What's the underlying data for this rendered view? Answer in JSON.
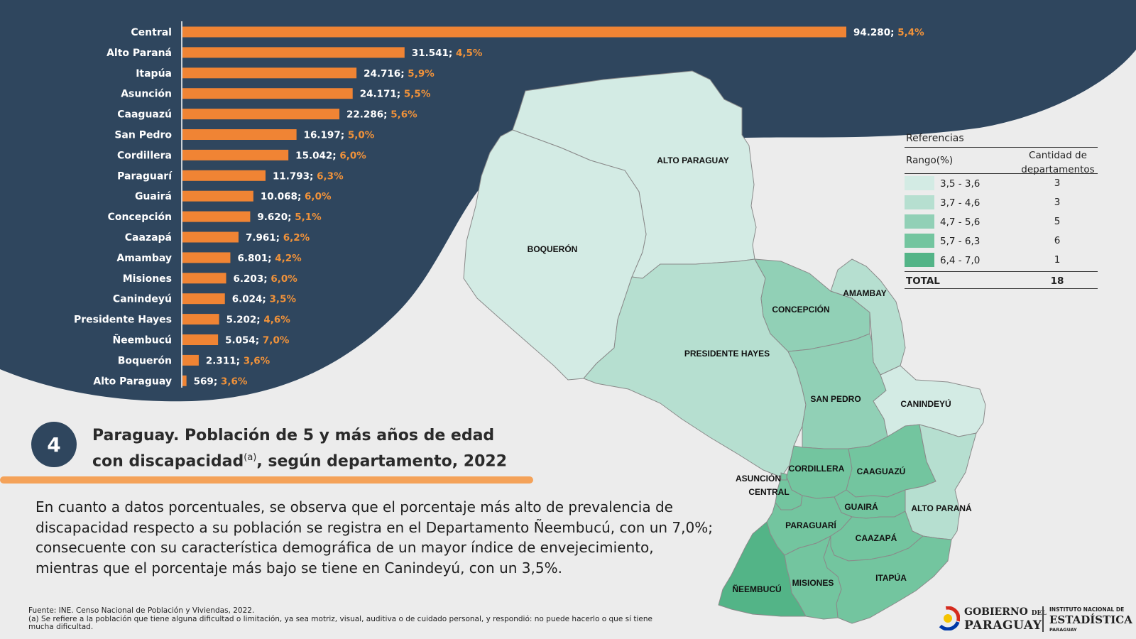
{
  "colors": {
    "navy": "#2f465e",
    "bar": "#f08434",
    "pct_text": "#f0923a",
    "accent_rule": "#f4a259",
    "background": "#ececec",
    "range_1": "#d3ebe4",
    "range_2": "#b6dfd0",
    "range_3": "#91d0b6",
    "range_4": "#73c59f",
    "range_5": "#53b487"
  },
  "chart_data": {
    "type": "bar",
    "orientation": "horizontal",
    "categories": [
      "Central",
      "Alto Paraná",
      "Itapúa",
      "Asunción",
      "Caaguazú",
      "San Pedro",
      "Cordillera",
      "Paraguarí",
      "Guairá",
      "Concepción",
      "Caazapá",
      "Amambay",
      "Misiones",
      "Canindeyú",
      "Presidente Hayes",
      "Ñeembucú",
      "Boquerón",
      "Alto Paraguay"
    ],
    "values": [
      94280,
      31541,
      24716,
      24171,
      22286,
      16197,
      15042,
      11793,
      10068,
      9620,
      7961,
      6801,
      6203,
      6024,
      5202,
      5054,
      2311,
      569
    ],
    "value_labels": [
      "94.280;",
      "31.541;",
      "24.716;",
      "24.171;",
      "22.286;",
      "16.197;",
      "15.042;",
      "11.793;",
      "10.068;",
      "9.620;",
      "7.961;",
      "6.801;",
      "6.203;",
      "6.024;",
      "5.202;",
      "5.054;",
      "2.311;",
      "569;"
    ],
    "percent_labels": [
      "5,4%",
      "4,5%",
      "5,9%",
      "5,5%",
      "5,6%",
      "5,0%",
      "6,0%",
      "6,3%",
      "6,0%",
      "5,1%",
      "6,2%",
      "4,2%",
      "6,0%",
      "3,5%",
      "4,6%",
      "7,0%",
      "3,6%",
      "3,6%"
    ],
    "percents": [
      5.4,
      4.5,
      5.9,
      5.5,
      5.6,
      5.0,
      6.0,
      6.3,
      6.0,
      5.1,
      6.2,
      4.2,
      6.0,
      3.5,
      4.6,
      7.0,
      3.6,
      3.6
    ],
    "xlim": [
      0,
      94280
    ],
    "grid": false
  },
  "map": {
    "labels": {
      "alto_paraguay": "ALTO PARAGUAY",
      "boqueron": "BOQUERÓN",
      "presidente_hayes": "PRESIDENTE  HAYES",
      "concepcion": "CONCEPCIÓN",
      "amambay": "AMAMBAY",
      "san_pedro": "SAN PEDRO",
      "canindeyu": "CANINDEYÚ",
      "cordillera": "CORDILLERA",
      "caaguazu": "CAAGUAZÚ",
      "asuncion": "ASUNCIÓN",
      "central": "CENTRAL",
      "alto_parana": "ALTO PARANÁ",
      "guaira": "GUAIRÁ",
      "paraguari": "PARAGUARÍ",
      "caazapa": "CAAZAPÁ",
      "itapua": "ITAPÚA",
      "misiones": "MISIONES",
      "neembucu": "ÑEEMBUCÚ"
    }
  },
  "legend": {
    "title": "Referencias",
    "col_range": "Rango(%)",
    "col_count_line1": "Cantidad de",
    "col_count_line2": "departamentos",
    "rows": [
      {
        "range": "3,5 - 3,6",
        "count": "3"
      },
      {
        "range": "3,7 - 4,6",
        "count": "3"
      },
      {
        "range": "4,7 - 5,6",
        "count": "5"
      },
      {
        "range": "5,7 - 6,3",
        "count": "6"
      },
      {
        "range": "6,4 - 7,0",
        "count": "1"
      }
    ],
    "total_label": "TOTAL",
    "total_value": "18"
  },
  "figure": {
    "number": "4",
    "title_line1": "Paraguay. Población de 5 y más años de edad",
    "title_line2a": "con discapacidad",
    "title_sup": "(a)",
    "title_line2b": ", según departamento, 2022"
  },
  "body_text": "En cuanto a datos porcentuales, se observa que el porcentaje más alto de prevalencia de discapacidad respecto a su población se registra en el Departamento Ñeembucú, con un 7,0%; consecuente con su característica demográfica de un mayor índice de envejecimiento, mientras que el porcentaje más bajo se tiene en Canindeyú, con un 3,5%.",
  "footnote": {
    "source": "Fuente: INE. Censo Nacional de Población y Viviendas, 2022.",
    "note": "(a) Se refiere a la población que tiene alguna dificultad o limitación, ya sea motriz, visual, auditiva o de cuidado personal, y respondió: no puede hacerlo o que sí tiene mucha dificultad."
  },
  "logos": {
    "gob_line1_a": "GOBIERNO",
    "gob_line1_b": "DEL",
    "gob_line2": "PARAGUAY",
    "ine_line1": "INSTITUTO NACIONAL DE",
    "ine_line2": "ESTADÍSTICA",
    "ine_line3": "PARAGUAY"
  }
}
